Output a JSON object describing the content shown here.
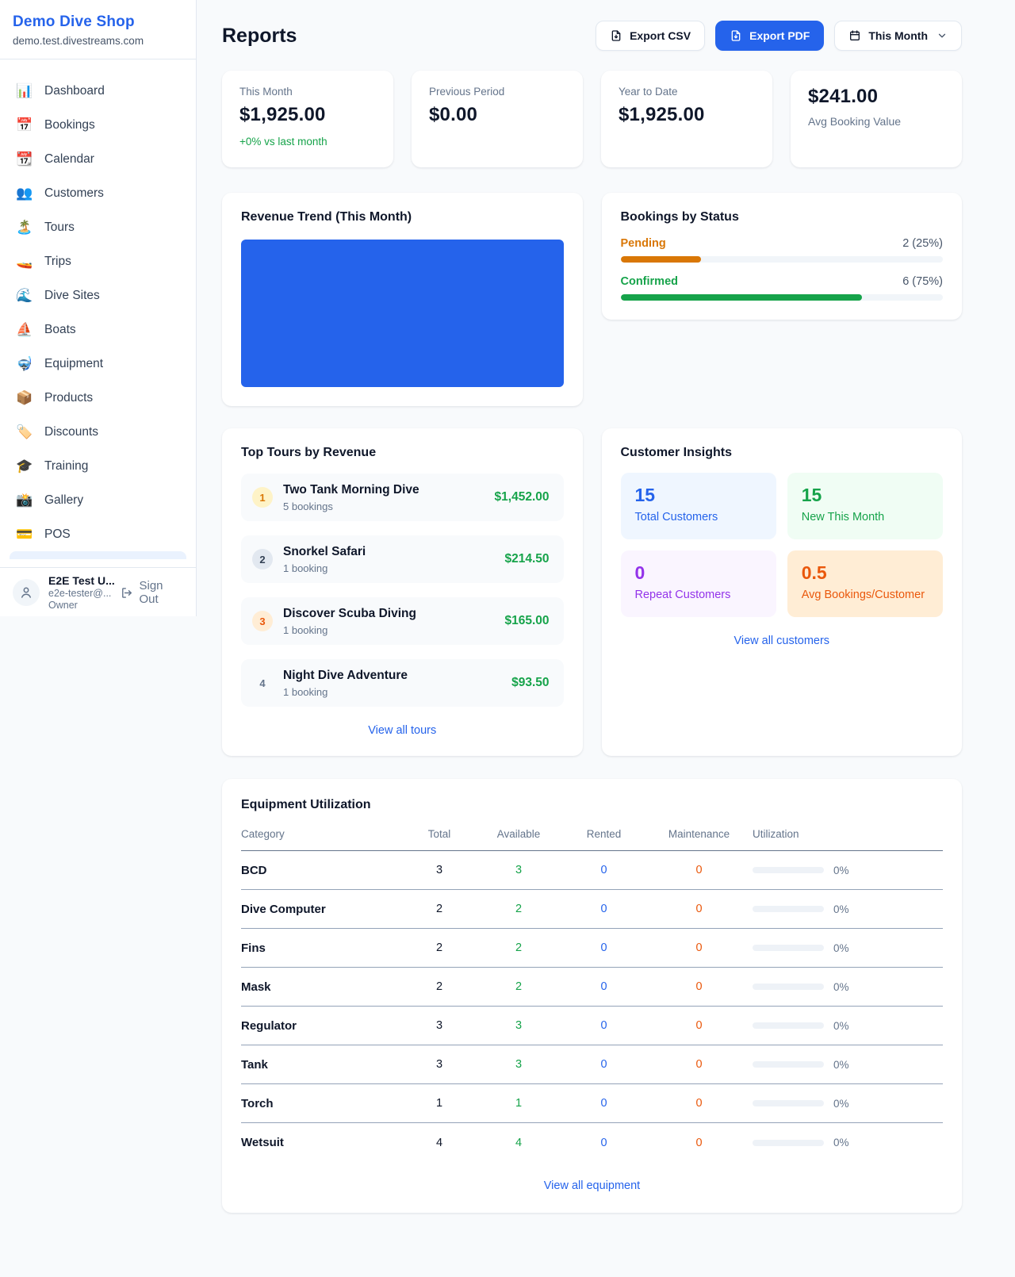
{
  "colors": {
    "accent_blue": "#2563eb",
    "green": "#16a34a",
    "amber": "#d97706",
    "orange": "#ea580c",
    "purple": "#9333ea",
    "background": "#f8fafc"
  },
  "sidebar": {
    "shop_name": "Demo Dive Shop",
    "shop_domain": "demo.test.divestreams.com",
    "nav": [
      {
        "id": "dashboard",
        "icon": "📊",
        "icon_name": "bar-chart-icon",
        "label": "Dashboard"
      },
      {
        "id": "bookings",
        "icon": "📅",
        "icon_name": "calendar-date-icon",
        "label": "Bookings"
      },
      {
        "id": "calendar",
        "icon": "📆",
        "icon_name": "tear-off-calendar-icon",
        "label": "Calendar"
      },
      {
        "id": "customers",
        "icon": "👥",
        "icon_name": "people-icon",
        "label": "Customers"
      },
      {
        "id": "tours",
        "icon": "🏝️",
        "icon_name": "island-icon",
        "label": "Tours"
      },
      {
        "id": "trips",
        "icon": "🚤",
        "icon_name": "speedboat-icon",
        "label": "Trips"
      },
      {
        "id": "dive-sites",
        "icon": "🌊",
        "icon_name": "wave-icon",
        "label": "Dive Sites"
      },
      {
        "id": "boats",
        "icon": "⛵",
        "icon_name": "sailboat-icon",
        "label": "Boats"
      },
      {
        "id": "equipment",
        "icon": "🤿",
        "icon_name": "diving-mask-icon",
        "label": "Equipment"
      },
      {
        "id": "products",
        "icon": "📦",
        "icon_name": "package-icon",
        "label": "Products"
      },
      {
        "id": "discounts",
        "icon": "🏷️",
        "icon_name": "tag-icon",
        "label": "Discounts"
      },
      {
        "id": "training",
        "icon": "🎓",
        "icon_name": "graduation-cap-icon",
        "label": "Training"
      },
      {
        "id": "gallery",
        "icon": "📸",
        "icon_name": "camera-icon",
        "label": "Gallery"
      },
      {
        "id": "pos",
        "icon": "💳",
        "icon_name": "credit-card-icon",
        "label": "POS"
      }
    ],
    "user": {
      "name": "E2E Test U...",
      "email": "e2e-tester@...",
      "role": "Owner",
      "sign_out_label": "Sign Out"
    }
  },
  "header": {
    "title": "Reports",
    "export_csv_label": "Export CSV",
    "export_pdf_label": "Export PDF",
    "period_label": "This Month"
  },
  "stats": [
    {
      "label": "This Month",
      "value": "$1,925.00",
      "note": "+0% vs last month"
    },
    {
      "label": "Previous Period",
      "value": "$0.00"
    },
    {
      "label": "Year to Date",
      "value": "$1,925.00"
    },
    {
      "label": "Avg Booking Value",
      "value": "$241.00"
    }
  ],
  "revenue_trend": {
    "title": "Revenue Trend (This Month)",
    "chart_color": "#2563eb"
  },
  "bookings_by_status": {
    "title": "Bookings by Status",
    "rows": [
      {
        "label": "Pending",
        "value": "2 (25%)",
        "pct": 25,
        "color": "#d97706"
      },
      {
        "label": "Confirmed",
        "value": "6 (75%)",
        "pct": 75,
        "color": "#16a34a"
      }
    ]
  },
  "top_tours": {
    "title": "Top Tours by Revenue",
    "items": [
      {
        "rank": "1",
        "name": "Two Tank Morning Dive",
        "bookings": "5 bookings",
        "amount": "$1,452.00"
      },
      {
        "rank": "2",
        "name": "Snorkel Safari",
        "bookings": "1 booking",
        "amount": "$214.50"
      },
      {
        "rank": "3",
        "name": "Discover Scuba Diving",
        "bookings": "1 booking",
        "amount": "$165.00"
      },
      {
        "rank": "4",
        "name": "Night Dive Adventure",
        "bookings": "1 booking",
        "amount": "$93.50"
      }
    ],
    "link_label": "View all tours"
  },
  "customer_insights": {
    "title": "Customer Insights",
    "boxes": [
      {
        "value": "15",
        "label": "Total Customers",
        "bg": "#eff6ff",
        "fg": "#2563eb"
      },
      {
        "value": "15",
        "label": "New This Month",
        "bg": "#f0fdf4",
        "fg": "#16a34a"
      },
      {
        "value": "0",
        "label": "Repeat Customers",
        "bg": "#faf5ff",
        "fg": "#9333ea"
      },
      {
        "value": "0.5",
        "label": "Avg Bookings/Customer",
        "bg": "#ffedd5",
        "fg": "#ea580c"
      }
    ],
    "link_label": "View all customers"
  },
  "equipment": {
    "title": "Equipment Utilization",
    "headers": [
      "Category",
      "Total",
      "Available",
      "Rented",
      "Maintenance",
      "Utilization"
    ],
    "rows": [
      {
        "category": "BCD",
        "total": "3",
        "available": "3",
        "rented": "0",
        "maintenance": "0",
        "utilization": "0%"
      },
      {
        "category": "Dive Computer",
        "total": "2",
        "available": "2",
        "rented": "0",
        "maintenance": "0",
        "utilization": "0%"
      },
      {
        "category": "Fins",
        "total": "2",
        "available": "2",
        "rented": "0",
        "maintenance": "0",
        "utilization": "0%"
      },
      {
        "category": "Mask",
        "total": "2",
        "available": "2",
        "rented": "0",
        "maintenance": "0",
        "utilization": "0%"
      },
      {
        "category": "Regulator",
        "total": "3",
        "available": "3",
        "rented": "0",
        "maintenance": "0",
        "utilization": "0%"
      },
      {
        "category": "Tank",
        "total": "3",
        "available": "3",
        "rented": "0",
        "maintenance": "0",
        "utilization": "0%"
      },
      {
        "category": "Torch",
        "total": "1",
        "available": "1",
        "rented": "0",
        "maintenance": "0",
        "utilization": "0%"
      },
      {
        "category": "Wetsuit",
        "total": "4",
        "available": "4",
        "rented": "0",
        "maintenance": "0",
        "utilization": "0%"
      }
    ],
    "link_label": "View all equipment"
  }
}
